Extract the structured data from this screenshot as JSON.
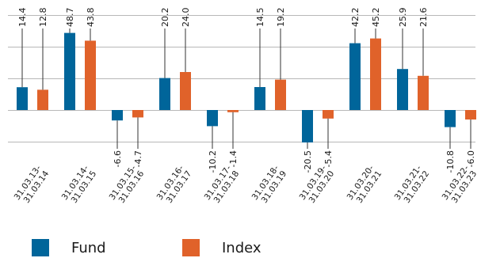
{
  "chart_data": {
    "type": "bar",
    "categories": [
      [
        "31.03.13-",
        "31.03.14"
      ],
      [
        "31.03.14-",
        "31.03.15"
      ],
      [
        "31.03.15-",
        "31.03.16"
      ],
      [
        "31.03.16-",
        "31.03.17"
      ],
      [
        "31.03.17-",
        "31.03.18"
      ],
      [
        "31.03.18-",
        "31.03.19"
      ],
      [
        "31.03.19-",
        "31.03.20"
      ],
      [
        "31.03.20-",
        "31.03.21"
      ],
      [
        "31.03.21-",
        "31.03.22"
      ],
      [
        "31.03.22-",
        "31.03.23"
      ]
    ],
    "series": [
      {
        "name": "Fund",
        "color": "#00659a",
        "values": [
          14.4,
          48.7,
          -6.6,
          20.2,
          -10.2,
          14.5,
          -20.5,
          42.2,
          25.9,
          -10.8
        ],
        "labels": [
          "14.4",
          "48.7",
          "-6.6",
          "20.2",
          "-10.2",
          "14.5",
          "-20.5",
          "42.2",
          "25.9",
          "-10.8"
        ]
      },
      {
        "name": "Index",
        "color": "#e0622a",
        "values": [
          12.8,
          43.8,
          -4.7,
          24.0,
          -1.4,
          19.2,
          -5.4,
          45.2,
          21.6,
          -6.0
        ],
        "labels": [
          "12.8",
          "43.8",
          "-4.7",
          "24.0",
          "-1.4",
          "19.2",
          "-5.4",
          "45.2",
          "21.6",
          "-6.0"
        ]
      }
    ],
    "ylim": [
      -20,
      60
    ],
    "gridlines": [
      -20,
      0,
      20,
      40,
      60
    ],
    "grid": true,
    "legend_position": "bottom",
    "title": "",
    "xlabel": "",
    "ylabel": ""
  }
}
